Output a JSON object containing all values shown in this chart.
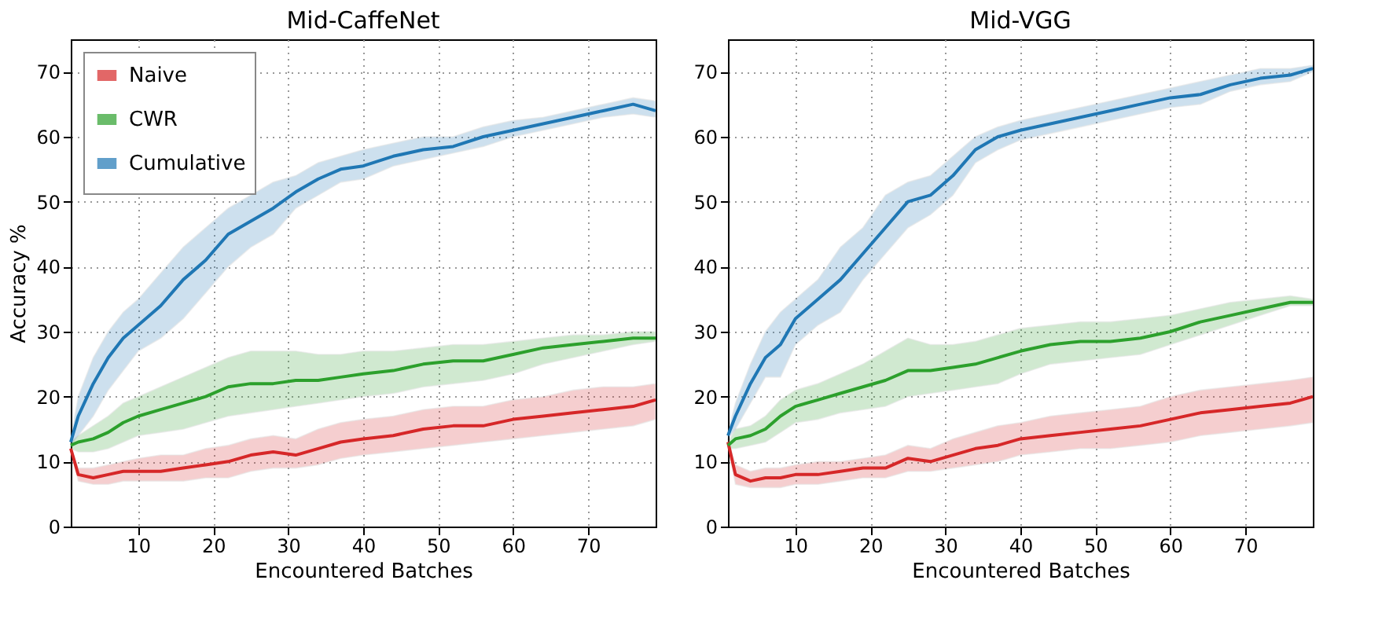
{
  "chart_data": [
    {
      "type": "line",
      "title": "Mid-CaffeNet",
      "xlabel": "Encountered Batches",
      "ylabel": "Accuracy %",
      "xlim": [
        1,
        79
      ],
      "ylim": [
        0,
        75
      ],
      "xticks": [
        10,
        20,
        30,
        40,
        50,
        60,
        70
      ],
      "yticks": [
        0,
        10,
        20,
        30,
        40,
        50,
        60,
        70
      ],
      "grid": true,
      "legend": "top left",
      "line_style": "solid",
      "x": [
        1,
        2,
        4,
        6,
        8,
        10,
        13,
        16,
        19,
        22,
        25,
        28,
        31,
        34,
        37,
        40,
        44,
        48,
        52,
        56,
        60,
        64,
        68,
        72,
        76,
        79
      ],
      "series": [
        {
          "name": "Naive",
          "color": "#d62728",
          "values": [
            12,
            8,
            7.5,
            8,
            8.5,
            8.5,
            8.5,
            9,
            9.5,
            10,
            11,
            11.5,
            11,
            12,
            13,
            13.5,
            14,
            15,
            15.5,
            15.5,
            16.5,
            17,
            17.5,
            18,
            18.5,
            19.5
          ],
          "lower": [
            12,
            7,
            6.5,
            6.5,
            7,
            7,
            7,
            7,
            7.5,
            7.5,
            8.5,
            9,
            9,
            9.5,
            10.5,
            11,
            11.5,
            12,
            12.5,
            13,
            13.5,
            14,
            14.5,
            15,
            15.5,
            16.5
          ],
          "upper": [
            12,
            9,
            9,
            9.5,
            10,
            10.5,
            11,
            11,
            12,
            12.5,
            13.5,
            14,
            13.5,
            15,
            16,
            16.5,
            17,
            18,
            18.5,
            18.5,
            19.5,
            20,
            21,
            21.5,
            21.5,
            22
          ]
        },
        {
          "name": "CWR",
          "color": "#2ca02c",
          "values": [
            12.5,
            13,
            13.5,
            14.5,
            16,
            17,
            18,
            19,
            20,
            21.5,
            22,
            22,
            22.5,
            22.5,
            23,
            23.5,
            24,
            25,
            25.5,
            25.5,
            26.5,
            27.5,
            28,
            28.5,
            29,
            29
          ],
          "lower": [
            12,
            11.5,
            11.5,
            12,
            13,
            14,
            14.5,
            15,
            16,
            17,
            17.5,
            18,
            18.5,
            19,
            19.5,
            20,
            20.5,
            21.5,
            22,
            22.5,
            23.5,
            25,
            26,
            27,
            28,
            28.5
          ],
          "upper": [
            13,
            14,
            15.5,
            17,
            19,
            20,
            21.5,
            23,
            24.5,
            26,
            27,
            27,
            27,
            26.5,
            26.5,
            27,
            27,
            27.5,
            28,
            28,
            28.5,
            29,
            29.5,
            29.5,
            30,
            30
          ]
        },
        {
          "name": "Cumulative",
          "color": "#1f77b4",
          "values": [
            13,
            17,
            22,
            26,
            29,
            31,
            34,
            38,
            41,
            45,
            47,
            49,
            51.5,
            53.5,
            55,
            55.5,
            57,
            58,
            58.5,
            60,
            61,
            62,
            63,
            64,
            65,
            64
          ],
          "lower": [
            12.5,
            14,
            17,
            21,
            24,
            27,
            29,
            32,
            36,
            40,
            43,
            45,
            49,
            51,
            53,
            53.5,
            55.5,
            56.5,
            57.5,
            58.5,
            60,
            61,
            62,
            63,
            63.5,
            63
          ],
          "upper": [
            13.5,
            20,
            26,
            30,
            33,
            35,
            39,
            43,
            46,
            49,
            51,
            53,
            54,
            56,
            57,
            58,
            59,
            60,
            60,
            61.5,
            62.5,
            63,
            64,
            65,
            66,
            65.5
          ]
        }
      ]
    },
    {
      "type": "line",
      "title": "Mid-VGG",
      "xlabel": "Encountered Batches",
      "xlim": [
        1,
        79
      ],
      "ylim": [
        0,
        75
      ],
      "xticks": [
        10,
        20,
        30,
        40,
        50,
        60,
        70
      ],
      "yticks": [
        0,
        10,
        20,
        30,
        40,
        50,
        60,
        70
      ],
      "grid": true,
      "line_style": "solid",
      "x": [
        1,
        2,
        4,
        6,
        8,
        10,
        13,
        16,
        19,
        22,
        25,
        28,
        31,
        34,
        37,
        40,
        44,
        48,
        52,
        56,
        60,
        64,
        68,
        72,
        76,
        79
      ],
      "series": [
        {
          "color": "#d62728",
          "values": [
            13,
            8,
            7,
            7.5,
            7.5,
            8,
            8,
            8.5,
            9,
            9,
            10.5,
            10,
            11,
            12,
            12.5,
            13.5,
            14,
            14.5,
            15,
            15.5,
            16.5,
            17.5,
            18,
            18.5,
            19,
            20
          ],
          "lower": [
            12.5,
            6.5,
            6,
            6,
            6,
            6.5,
            6.5,
            7,
            7.5,
            7.5,
            8.5,
            8.5,
            9,
            9.5,
            10,
            11,
            11.5,
            12,
            12,
            12.5,
            13,
            14,
            14.5,
            15,
            15.5,
            16
          ],
          "upper": [
            13.5,
            9.5,
            8.5,
            9,
            9,
            9.5,
            10,
            10,
            10.5,
            11,
            12.5,
            12,
            13.5,
            14.5,
            15.5,
            16,
            17,
            17.5,
            18,
            18.5,
            20,
            21,
            21.5,
            22,
            22.5,
            23
          ]
        },
        {
          "color": "#2ca02c",
          "values": [
            12.5,
            13.5,
            14,
            15,
            17,
            18.5,
            19.5,
            20.5,
            21.5,
            22.5,
            24,
            24,
            24.5,
            25,
            26,
            27,
            28,
            28.5,
            28.5,
            29,
            30,
            31.5,
            32.5,
            33.5,
            34.5,
            34.5
          ],
          "lower": [
            12,
            12,
            12.5,
            13,
            14.5,
            16,
            16.5,
            17.5,
            18,
            18.5,
            20,
            20.5,
            21,
            21.5,
            22,
            23.5,
            25,
            25.5,
            26,
            26.5,
            28,
            29.5,
            31,
            32.5,
            34,
            34
          ],
          "upper": [
            13,
            15,
            15.5,
            17,
            19.5,
            21,
            22,
            23.5,
            25,
            27,
            29,
            28,
            28,
            28.5,
            29.5,
            30.5,
            31,
            31.5,
            31.5,
            32,
            32.5,
            33.5,
            34.5,
            35,
            35.5,
            35
          ]
        },
        {
          "color": "#1f77b4",
          "values": [
            14,
            17,
            22,
            26,
            28,
            32,
            35,
            38,
            42,
            46,
            50,
            51,
            54,
            58,
            60,
            61,
            62,
            63,
            64,
            65,
            66,
            66.5,
            68,
            69,
            69.5,
            70.5
          ],
          "lower": [
            13.5,
            15,
            19,
            23,
            23,
            28,
            31,
            33,
            38,
            42,
            46,
            48,
            51,
            56,
            58,
            59.5,
            60.5,
            61.5,
            62.5,
            63.5,
            64.5,
            65,
            67,
            68,
            68.5,
            70
          ],
          "upper": [
            14.5,
            19,
            25,
            30,
            33,
            35,
            38,
            43,
            46,
            51,
            53,
            54,
            57,
            60,
            61.5,
            62.5,
            63.5,
            64.5,
            65.5,
            66.5,
            67.5,
            68.5,
            69.5,
            70.5,
            70.5,
            71
          ]
        }
      ]
    }
  ]
}
